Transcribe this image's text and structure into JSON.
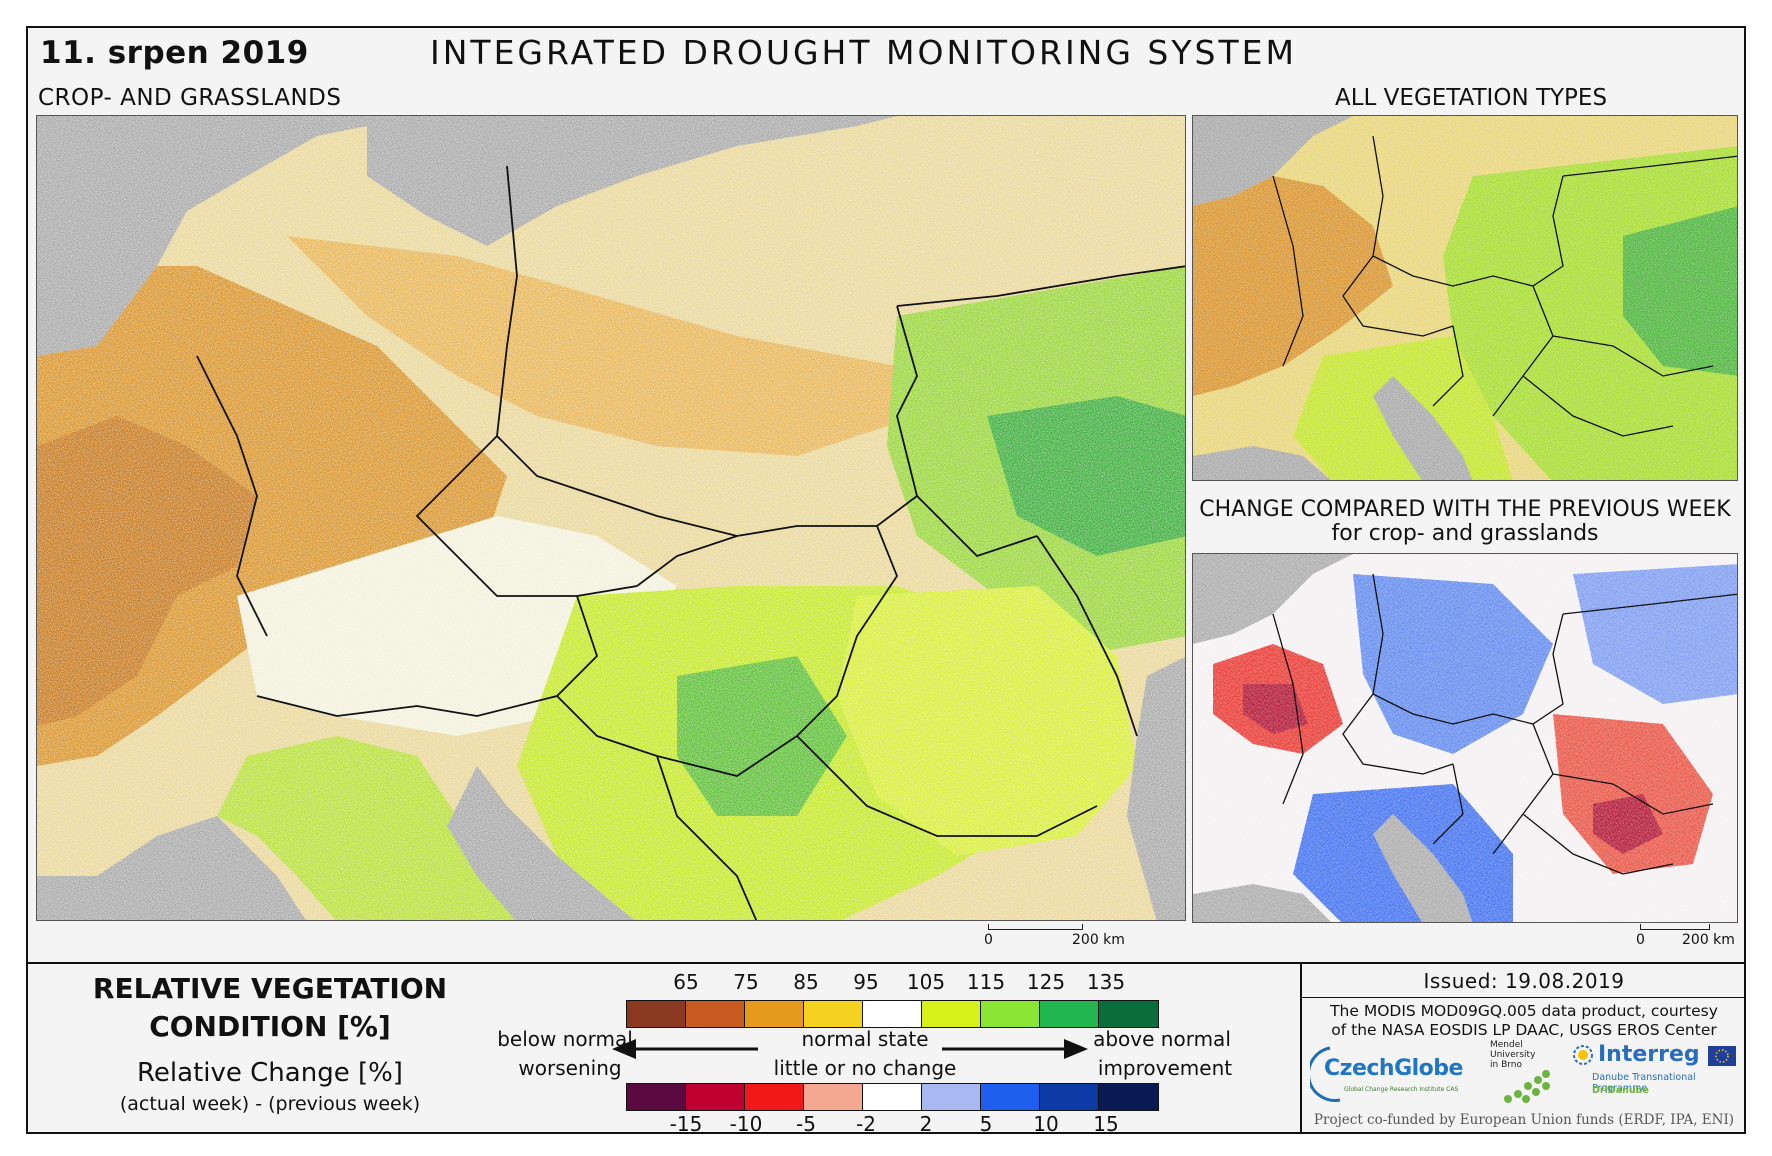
{
  "header": {
    "date": "11. srpen 2019",
    "title": "INTEGRATED DROUGHT MONITORING SYSTEM",
    "left_subtitle": "CROP- AND GRASSLANDS",
    "right_subtitle": "ALL VEGETATION TYPES",
    "change_title_line1": "CHANGE COMPARED WITH THE PREVIOUS WEEK",
    "change_title_line2": "for crop- and grasslands"
  },
  "scalebars": {
    "main": {
      "start": "0",
      "end": "200 km"
    },
    "small": {
      "start": "0",
      "end": "200 km"
    }
  },
  "legend": {
    "title_line1": "RELATIVE VEGETATION",
    "title_line2": "CONDITION [%]",
    "change_label": "Relative Change [%]",
    "change_sublabel": "(actual week) - (previous week)",
    "condition_ticks": [
      "65",
      "75",
      "85",
      "95",
      "105",
      "115",
      "125",
      "135"
    ],
    "condition_colors": [
      "#8b3a22",
      "#c75a1f",
      "#e69a1c",
      "#f5d21f",
      "#ffffff",
      "#d6f21a",
      "#8be534",
      "#22b650",
      "#0a6e3c"
    ],
    "change_ticks": [
      "-15",
      "-10",
      "-5",
      "-2",
      "2",
      "5",
      "10",
      "15"
    ],
    "change_colors": [
      "#5a0a40",
      "#c00030",
      "#f01818",
      "#f5a890",
      "#ffffff",
      "#a9b8f0",
      "#1f5ff0",
      "#0c3aa6",
      "#0a1a55"
    ],
    "left_label1": "below normal",
    "left_label2": "worsening",
    "center_label1": "normal state",
    "center_label2": "little or no change",
    "right_label1": "above normal",
    "right_label2": "improvement"
  },
  "footer": {
    "issued": "Issued: 19.08.2019",
    "courtesy_line1": "The MODIS MOD09GQ.005 data product, courtesy",
    "courtesy_line2": "of the NASA EOSDIS LP DAAC, USGS EROS Center",
    "czechglobe": "CzechGlobe",
    "czechglobe_sub": "Global Change Research Institute CAS",
    "mendel_line1": "Mendel",
    "mendel_line2": "University",
    "mendel_line3": "in Brno",
    "interreg": "Interreg",
    "interreg_sub": "Danube Transnational Programme",
    "interreg_project": "DriDanube",
    "cofunded": "Project co-funded by European Union funds (ERDF, IPA, ENI)"
  }
}
